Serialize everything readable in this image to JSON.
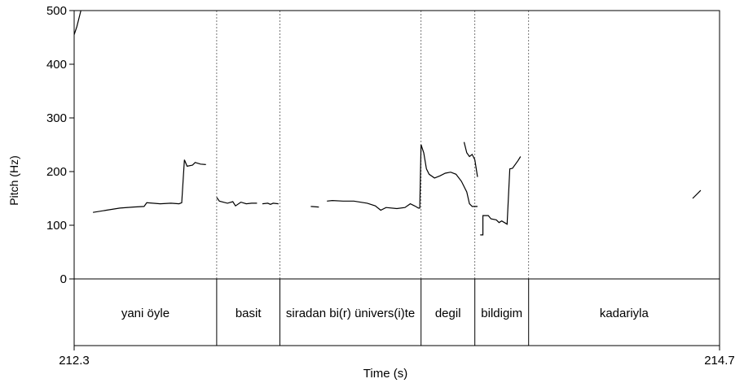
{
  "chart_data": {
    "type": "line",
    "xlabel": "Time (s)",
    "ylabel": "Pitch (Hz)",
    "xlim": [
      212.3,
      214.7
    ],
    "ylim": [
      0,
      500
    ],
    "x_tick_labels": [
      "212.3",
      "214.7"
    ],
    "y_ticks": [
      0,
      100,
      200,
      300,
      400,
      500
    ],
    "y_tick_labels": [
      "0",
      "100",
      "200",
      "300",
      "400",
      "500"
    ],
    "boundaries": [
      212.3,
      212.83,
      213.065,
      213.59,
      213.79,
      213.99,
      214.7
    ],
    "words": [
      {
        "label": "yani öyle",
        "start": 212.3,
        "end": 212.83
      },
      {
        "label": "basit",
        "start": 212.83,
        "end": 213.065
      },
      {
        "label": "siradan bi(r) ünivers(i)te",
        "start": 213.065,
        "end": 213.59
      },
      {
        "label": "degil",
        "start": 213.59,
        "end": 213.79
      },
      {
        "label": "bildigim",
        "start": 213.79,
        "end": 213.99
      },
      {
        "label": "kadariyla",
        "start": 213.99,
        "end": 214.7
      }
    ],
    "series": [
      {
        "segments": [
          [
            [
              212.3,
              455
            ],
            [
              212.31,
              470
            ],
            [
              212.32,
              490
            ],
            [
              212.33,
              510
            ]
          ],
          [
            [
              212.37,
              124
            ],
            [
              212.42,
              128
            ],
            [
              212.47,
              132
            ],
            [
              212.52,
              134
            ],
            [
              212.56,
              135
            ],
            [
              212.57,
              142
            ],
            [
              212.62,
              140
            ],
            [
              212.66,
              141
            ],
            [
              212.69,
              140
            ],
            [
              212.7,
              142
            ],
            [
              212.71,
              222
            ],
            [
              212.72,
              210
            ],
            [
              212.74,
              212
            ],
            [
              212.75,
              217
            ],
            [
              212.77,
              214
            ],
            [
              212.79,
              213
            ]
          ],
          [
            [
              212.83,
              152
            ],
            [
              212.84,
              145
            ],
            [
              212.87,
              141
            ],
            [
              212.89,
              144
            ],
            [
              212.9,
              136
            ],
            [
              212.92,
              143
            ],
            [
              212.94,
              140
            ],
            [
              212.96,
              141
            ],
            [
              212.98,
              141
            ]
          ],
          [
            [
              213.0,
              140
            ],
            [
              213.02,
              141
            ],
            [
              213.03,
              139
            ],
            [
              213.04,
              141
            ],
            [
              213.06,
              140
            ]
          ],
          [
            [
              213.18,
              135
            ],
            [
              213.21,
              134
            ]
          ],
          [
            [
              213.24,
              145
            ],
            [
              213.26,
              146
            ],
            [
              213.3,
              145
            ],
            [
              213.34,
              145
            ],
            [
              213.39,
              141
            ],
            [
              213.42,
              136
            ],
            [
              213.44,
              128
            ],
            [
              213.46,
              133
            ],
            [
              213.5,
              131
            ],
            [
              213.53,
              133
            ],
            [
              213.55,
              140
            ],
            [
              213.57,
              135
            ],
            [
              213.58,
              132
            ],
            [
              213.585,
              132
            ],
            [
              213.59,
              250
            ]
          ],
          [
            [
              213.59,
              250
            ],
            [
              213.6,
              235
            ],
            [
              213.61,
              205
            ],
            [
              213.62,
              195
            ],
            [
              213.64,
              188
            ],
            [
              213.66,
              192
            ],
            [
              213.68,
              197
            ],
            [
              213.7,
              199
            ],
            [
              213.72,
              195
            ],
            [
              213.74,
              182
            ],
            [
              213.76,
              162
            ],
            [
              213.77,
              140
            ],
            [
              213.78,
              135
            ],
            [
              213.8,
              135
            ]
          ],
          [
            [
              213.75,
              255
            ],
            [
              213.76,
              235
            ],
            [
              213.77,
              228
            ],
            [
              213.78,
              232
            ],
            [
              213.79,
              222
            ],
            [
              213.8,
              190
            ]
          ],
          [
            [
              213.81,
              82
            ],
            [
              213.82,
              82
            ],
            [
              213.82,
              118
            ],
            [
              213.84,
              118
            ],
            [
              213.85,
              112
            ],
            [
              213.87,
              110
            ],
            [
              213.88,
              105
            ],
            [
              213.89,
              108
            ],
            [
              213.9,
              105
            ],
            [
              213.91,
              102
            ],
            [
              213.92,
              205
            ],
            [
              213.93,
              206
            ],
            [
              213.95,
              220
            ],
            [
              213.96,
              228
            ]
          ],
          [
            [
              214.6,
              150
            ],
            [
              214.62,
              160
            ],
            [
              214.63,
              165
            ]
          ]
        ]
      }
    ]
  }
}
